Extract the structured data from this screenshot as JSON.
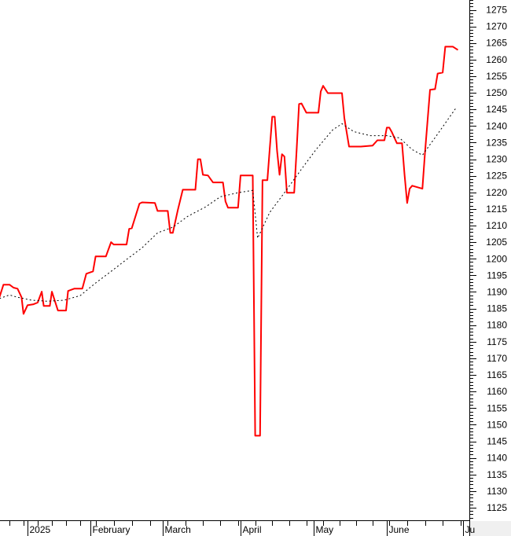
{
  "chart_data": {
    "type": "line",
    "title": "",
    "xlabel": "",
    "ylabel": "",
    "ylim": [
      1121,
      1278
    ],
    "y_ticks": [
      1275,
      1270,
      1265,
      1260,
      1255,
      1250,
      1245,
      1240,
      1235,
      1230,
      1225,
      1220,
      1215,
      1210,
      1205,
      1200,
      1195,
      1190,
      1185,
      1180,
      1175,
      1170,
      1165,
      1160,
      1155,
      1150,
      1145,
      1140,
      1135,
      1130,
      1125
    ],
    "y_axis_position": "right",
    "x_ticks": [
      {
        "date": "2025-01-01",
        "label": "2025"
      },
      {
        "date": "2025-02-01",
        "label": "February"
      },
      {
        "date": "2025-03-01",
        "label": "March"
      },
      {
        "date": "2025-04-01",
        "label": "April"
      },
      {
        "date": "2025-05-01",
        "label": "May"
      },
      {
        "date": "2025-06-01",
        "label": "June"
      },
      {
        "date": "2025-07-01",
        "label": "Ju"
      }
    ],
    "grid": false,
    "series": [
      {
        "style": "solid",
        "color": "#ff0000",
        "points": [
          [
            "2024-12-18",
            1188.4
          ],
          [
            "2024-12-20",
            1192.2
          ],
          [
            "2024-12-23",
            1192.2
          ],
          [
            "2024-12-25",
            1191.3
          ],
          [
            "2024-12-27",
            1191.0
          ],
          [
            "2024-12-29",
            1188.4
          ],
          [
            "2024-12-30",
            1183.4
          ],
          [
            "2025-01-01",
            1186.0
          ],
          [
            "2025-01-04",
            1186.3
          ],
          [
            "2025-01-06",
            1186.8
          ],
          [
            "2025-01-08",
            1190.1
          ],
          [
            "2025-01-09",
            1185.8
          ],
          [
            "2025-01-12",
            1185.8
          ],
          [
            "2025-01-13",
            1190.1
          ],
          [
            "2025-01-16",
            1184.4
          ],
          [
            "2025-01-20",
            1184.4
          ],
          [
            "2025-01-21",
            1190.3
          ],
          [
            "2025-01-24",
            1191.0
          ],
          [
            "2025-01-28",
            1191.0
          ],
          [
            "2025-01-30",
            1195.5
          ],
          [
            "2025-02-02",
            1196.2
          ],
          [
            "2025-02-03",
            1200.7
          ],
          [
            "2025-02-07",
            1200.7
          ],
          [
            "2025-02-09",
            1205.0
          ],
          [
            "2025-02-10",
            1204.3
          ],
          [
            "2025-02-15",
            1204.3
          ],
          [
            "2025-02-16",
            1209.0
          ],
          [
            "2025-02-17",
            1209.2
          ],
          [
            "2025-02-20",
            1216.6
          ],
          [
            "2025-02-21",
            1217.0
          ],
          [
            "2025-02-26",
            1216.8
          ],
          [
            "2025-02-27",
            1214.4
          ],
          [
            "2025-03-03",
            1214.4
          ],
          [
            "2025-03-04",
            1207.8
          ],
          [
            "2025-03-05",
            1207.8
          ],
          [
            "2025-03-07",
            1214.7
          ],
          [
            "2025-03-09",
            1220.8
          ],
          [
            "2025-03-14",
            1220.8
          ],
          [
            "2025-03-15",
            1230.0
          ],
          [
            "2025-03-16",
            1230.0
          ],
          [
            "2025-03-17",
            1225.3
          ],
          [
            "2025-03-19",
            1225.1
          ],
          [
            "2025-03-21",
            1223.0
          ],
          [
            "2025-03-25",
            1223.0
          ],
          [
            "2025-03-26",
            1217.3
          ],
          [
            "2025-03-27",
            1215.4
          ],
          [
            "2025-03-31",
            1215.4
          ],
          [
            "2025-04-01",
            1225.1
          ],
          [
            "2025-04-06",
            1225.1
          ],
          [
            "2025-04-07",
            1146.7
          ],
          [
            "2025-04-09",
            1146.7
          ],
          [
            "2025-04-10",
            1223.7
          ],
          [
            "2025-04-12",
            1223.7
          ],
          [
            "2025-04-13",
            1233.4
          ],
          [
            "2025-04-14",
            1242.8
          ],
          [
            "2025-04-15",
            1242.8
          ],
          [
            "2025-04-16",
            1232.4
          ],
          [
            "2025-04-17",
            1225.3
          ],
          [
            "2025-04-18",
            1231.5
          ],
          [
            "2025-04-19",
            1230.8
          ],
          [
            "2025-04-20",
            1219.9
          ],
          [
            "2025-04-23",
            1219.9
          ],
          [
            "2025-04-24",
            1232.7
          ],
          [
            "2025-04-25",
            1246.6
          ],
          [
            "2025-04-26",
            1246.8
          ],
          [
            "2025-04-28",
            1244.0
          ],
          [
            "2025-05-03",
            1244.0
          ],
          [
            "2025-05-04",
            1250.4
          ],
          [
            "2025-05-05",
            1252.1
          ],
          [
            "2025-05-07",
            1249.9
          ],
          [
            "2025-05-13",
            1249.9
          ],
          [
            "2025-05-14",
            1242.4
          ],
          [
            "2025-05-16",
            1233.8
          ],
          [
            "2025-05-21",
            1233.8
          ],
          [
            "2025-05-26",
            1234.1
          ],
          [
            "2025-05-28",
            1235.7
          ],
          [
            "2025-05-31",
            1235.7
          ],
          [
            "2025-06-01",
            1239.5
          ],
          [
            "2025-06-02",
            1239.5
          ],
          [
            "2025-06-03",
            1238.1
          ],
          [
            "2025-06-05",
            1234.8
          ],
          [
            "2025-06-07",
            1234.8
          ],
          [
            "2025-06-08",
            1225.3
          ],
          [
            "2025-06-09",
            1216.8
          ],
          [
            "2025-06-10",
            1221.1
          ],
          [
            "2025-06-11",
            1222.0
          ],
          [
            "2025-06-15",
            1221.1
          ],
          [
            "2025-06-16",
            1231.7
          ],
          [
            "2025-06-18",
            1250.9
          ],
          [
            "2025-06-20",
            1251.1
          ],
          [
            "2025-06-21",
            1255.8
          ],
          [
            "2025-06-23",
            1256.1
          ],
          [
            "2025-06-24",
            1263.9
          ],
          [
            "2025-06-27",
            1263.9
          ],
          [
            "2025-06-29",
            1262.9
          ]
        ]
      },
      {
        "style": "dotted",
        "color": "#000000",
        "points": [
          [
            "2024-12-18",
            1188.0
          ],
          [
            "2024-12-23",
            1189.1
          ],
          [
            "2024-12-27",
            1188.4
          ],
          [
            "2025-01-03",
            1187.5
          ],
          [
            "2025-01-11",
            1187.2
          ],
          [
            "2025-01-19",
            1187.5
          ],
          [
            "2025-01-27",
            1188.9
          ],
          [
            "2025-02-03",
            1192.7
          ],
          [
            "2025-02-09",
            1196.2
          ],
          [
            "2025-02-15",
            1199.8
          ],
          [
            "2025-02-21",
            1203.3
          ],
          [
            "2025-02-27",
            1207.8
          ],
          [
            "2025-03-05",
            1209.5
          ],
          [
            "2025-03-11",
            1212.8
          ],
          [
            "2025-03-18",
            1215.6
          ],
          [
            "2025-03-24",
            1218.7
          ],
          [
            "2025-03-31",
            1219.9
          ],
          [
            "2025-04-06",
            1220.6
          ],
          [
            "2025-04-08",
            1206.2
          ],
          [
            "2025-04-13",
            1214.0
          ],
          [
            "2025-04-19",
            1219.9
          ],
          [
            "2025-04-26",
            1227.0
          ],
          [
            "2025-05-02",
            1232.9
          ],
          [
            "2025-05-09",
            1238.8
          ],
          [
            "2025-05-13",
            1240.7
          ],
          [
            "2025-05-18",
            1238.3
          ],
          [
            "2025-05-25",
            1237.1
          ],
          [
            "2025-06-01",
            1237.1
          ],
          [
            "2025-06-06",
            1236.4
          ],
          [
            "2025-06-11",
            1232.9
          ],
          [
            "2025-06-15",
            1231.2
          ],
          [
            "2025-06-21",
            1237.6
          ],
          [
            "2025-06-28",
            1245.2
          ]
        ]
      }
    ]
  }
}
